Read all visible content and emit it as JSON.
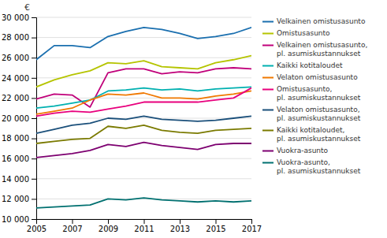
{
  "chart_data": {
    "type": "line",
    "ylabel": "€",
    "x": [
      2005,
      2006,
      2007,
      2008,
      2009,
      2010,
      2011,
      2012,
      2013,
      2014,
      2015,
      2016,
      2017
    ],
    "series": [
      {
        "name": "Velkainen omistusasunto",
        "color": "#1a6faf",
        "values": [
          25800,
          27200,
          27200,
          27000,
          28100,
          28600,
          29000,
          28800,
          28400,
          27900,
          28100,
          28400,
          29000
        ]
      },
      {
        "name": "Omistusasunto",
        "color": "#b5c400",
        "values": [
          23100,
          23800,
          24300,
          24700,
          25500,
          25400,
          25700,
          25100,
          25000,
          24900,
          25500,
          25800,
          26200
        ]
      },
      {
        "name": "Velkainen omistusasunto,\npl. asumiskustannukset",
        "color": "#c0007a",
        "values": [
          21900,
          22400,
          22300,
          21100,
          24500,
          24900,
          24900,
          24400,
          24600,
          24500,
          24900,
          25000,
          24900
        ]
      },
      {
        "name": "Kaikki kotitaloudet",
        "color": "#00b0b0",
        "values": [
          21000,
          21200,
          21500,
          21800,
          22700,
          22800,
          23000,
          22800,
          22900,
          22700,
          22900,
          23000,
          23100
        ]
      },
      {
        "name": "Velaton omistusasunto",
        "color": "#f07800",
        "values": [
          20400,
          20700,
          21000,
          21800,
          22400,
          22300,
          22500,
          22000,
          22000,
          21900,
          22200,
          22400,
          22700
        ]
      },
      {
        "name": "Omistusasunto,\npl. asumiskustannukset",
        "color": "#e8007d",
        "values": [
          20200,
          20500,
          20700,
          20600,
          20900,
          21200,
          21600,
          21600,
          21600,
          21600,
          21800,
          22000,
          23000
        ]
      },
      {
        "name": "Velaton omistusasunto,\npl. asumiskustannukset",
        "color": "#1a4f7a",
        "values": [
          18500,
          18900,
          19300,
          19500,
          20000,
          19900,
          20200,
          19900,
          19800,
          19700,
          19800,
          20000,
          20200
        ]
      },
      {
        "name": "Kaikki kotitaloudet,\npl. asumiskustannukset",
        "color": "#7a7a00",
        "values": [
          17500,
          17700,
          17900,
          18000,
          19200,
          19000,
          19300,
          18800,
          18600,
          18500,
          18800,
          18900,
          19000
        ]
      },
      {
        "name": "Vuokra-asunto",
        "color": "#7d0070",
        "values": [
          16100,
          16300,
          16500,
          16800,
          17400,
          17200,
          17600,
          17300,
          17100,
          16900,
          17400,
          17500,
          17500
        ]
      },
      {
        "name": "Vuokra-asunto,\npl. asumiskustannukset",
        "color": "#007070",
        "values": [
          11100,
          11200,
          11300,
          11400,
          12000,
          11900,
          12100,
          11900,
          11800,
          11700,
          11800,
          11700,
          11800
        ]
      }
    ],
    "xlim": [
      2005,
      2017
    ],
    "xticks": [
      2005,
      2007,
      2009,
      2011,
      2013,
      2015,
      2017
    ],
    "ylim": [
      10000,
      30000
    ],
    "yticks": [
      {
        "value": 10000,
        "label": "10 000"
      },
      {
        "value": 12000,
        "label": "12 000"
      },
      {
        "value": 14000,
        "label": "14 000"
      },
      {
        "value": 16000,
        "label": "16 000"
      },
      {
        "value": 18000,
        "label": "18 000"
      },
      {
        "value": 20000,
        "label": "20 000"
      },
      {
        "value": 22000,
        "label": "22 000"
      },
      {
        "value": 24000,
        "label": "24 000"
      },
      {
        "value": 26000,
        "label": "26 000"
      },
      {
        "value": 28000,
        "label": "28 000"
      },
      {
        "value": 30000,
        "label": "30 000"
      }
    ],
    "grid": true,
    "legend": "right"
  }
}
